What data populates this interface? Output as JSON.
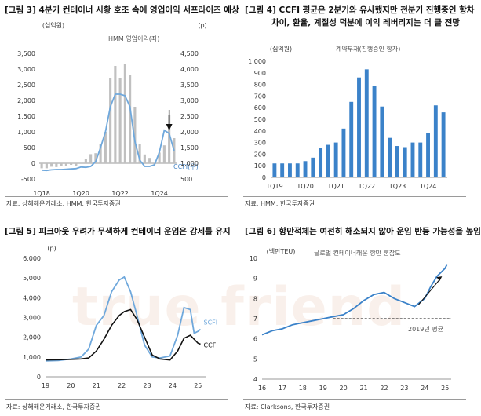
{
  "watermark": "true friend",
  "colors": {
    "grey_bar": "#c0c0c0",
    "blue_line": "#6fa8dc",
    "bar_blue": "#3b82c9",
    "black": "#111111",
    "scfi": "#6fa8dc"
  },
  "fig3": {
    "title": "[그림 3] 4분기 컨테이너 시황 호조 속에 영업이익 서프라이즈 예상",
    "source": "자료: 상해해운거래소, HMM, 한국투자증권",
    "left_unit": "(십억원)",
    "right_unit": "(p)",
    "bar_label": "HMM 영업이익(좌)",
    "line_label": "CCFI(우)",
    "chart_data": {
      "type": "bar+line",
      "categories": [
        "1Q18",
        "2Q18",
        "3Q18",
        "4Q18",
        "1Q19",
        "2Q19",
        "3Q19",
        "4Q19",
        "1Q20",
        "2Q20",
        "3Q20",
        "4Q20",
        "1Q21",
        "2Q21",
        "3Q21",
        "4Q21",
        "1Q22",
        "2Q22",
        "3Q22",
        "4Q22",
        "1Q23",
        "2Q23",
        "3Q23",
        "4Q23",
        "1Q24",
        "2Q24",
        "3Q24",
        "4Q24"
      ],
      "x_ticks": [
        "1Q18",
        "1Q20",
        "1Q22",
        "1Q24"
      ],
      "bar_series": {
        "name": "HMM 영업이익(좌)",
        "values": [
          -160,
          -160,
          -110,
          -120,
          -90,
          -90,
          -50,
          -90,
          20,
          140,
          290,
          320,
          600,
          1000,
          2700,
          3100,
          2700,
          3150,
          2800,
          1800,
          600,
          280,
          170,
          -30,
          340,
          570,
          1550,
          800
        ]
      },
      "line_series": {
        "name": "CCFI(우)",
        "values": [
          780,
          770,
          790,
          800,
          800,
          810,
          820,
          830,
          880,
          870,
          900,
          1050,
          1500,
          2000,
          2800,
          3200,
          3200,
          3150,
          2800,
          1700,
          1100,
          900,
          900,
          950,
          1350,
          2050,
          1950,
          1400
        ]
      },
      "ylim_left": [
        -500,
        3500
      ],
      "yticks_left": [
        -500,
        0,
        500,
        1000,
        1500,
        2000,
        2500,
        3000,
        3500
      ],
      "ylim_right": [
        500,
        4500
      ],
      "yticks_right": [
        500,
        1000,
        1500,
        2000,
        2500,
        3000,
        3500,
        4000,
        4500
      ],
      "arrow_at": "3Q24"
    }
  },
  "fig4": {
    "title_line1": "[그림 4] CCFI 평균은 2분기와 유사했지만 전분기 진행중인 항차",
    "title_line2": "차이, 환율, 계절성 덕분에 이익 레버리지는 더 클 전망",
    "source": "자료: HMM, 한국투자증권",
    "unit": "(십억원)",
    "series_label": "계약부채(진행중인 항차)",
    "chart_data": {
      "type": "bar",
      "categories": [
        "1Q19",
        "2Q19",
        "3Q19",
        "4Q19",
        "1Q20",
        "2Q20",
        "3Q20",
        "4Q20",
        "1Q21",
        "2Q21",
        "3Q21",
        "4Q21",
        "1Q22",
        "2Q22",
        "3Q22",
        "4Q22",
        "1Q23",
        "2Q23",
        "3Q23",
        "4Q23",
        "1Q24",
        "2Q24",
        "3Q24"
      ],
      "x_ticks": [
        "1Q19",
        "1Q20",
        "1Q21",
        "1Q22",
        "1Q23",
        "1Q24"
      ],
      "values": [
        120,
        120,
        120,
        120,
        140,
        170,
        250,
        280,
        300,
        420,
        650,
        860,
        930,
        790,
        610,
        340,
        270,
        260,
        300,
        300,
        380,
        620,
        560
      ],
      "ylim": [
        0,
        1000
      ],
      "yticks": [
        0,
        100,
        200,
        300,
        400,
        500,
        600,
        700,
        800,
        900,
        1000
      ]
    }
  },
  "fig5": {
    "title": "[그림 5] 피크아웃 우려가 무색하게 컨테이너 운임은 강세를 유지",
    "source": "자료: 상해해운거래소, 한국투자증권",
    "unit": "(p)",
    "chart_data": {
      "type": "line",
      "x_ticks": [
        "19",
        "20",
        "21",
        "22",
        "23",
        "24",
        "25"
      ],
      "xlim": [
        19,
        25.3
      ],
      "ylim": [
        0,
        6000
      ],
      "yticks": [
        0,
        1000,
        2000,
        3000,
        4000,
        5000,
        6000
      ],
      "series": [
        {
          "name": "SCFI",
          "x": [
            19,
            19.5,
            20,
            20.4,
            20.7,
            21,
            21.3,
            21.6,
            21.9,
            22.1,
            22.35,
            22.6,
            22.9,
            23.2,
            23.5,
            23.9,
            24.2,
            24.45,
            24.7,
            24.85,
            25.0,
            25.1
          ],
          "y": [
            800,
            820,
            900,
            1000,
            1400,
            2600,
            3100,
            4300,
            4900,
            5050,
            4300,
            3100,
            1600,
            1000,
            950,
            1050,
            2100,
            3500,
            3400,
            2200,
            2300,
            2400
          ]
        },
        {
          "name": "CCFI",
          "x": [
            19,
            19.5,
            20,
            20.4,
            20.7,
            21,
            21.3,
            21.6,
            21.9,
            22.1,
            22.35,
            22.6,
            22.9,
            23.2,
            23.5,
            23.9,
            24.2,
            24.45,
            24.7,
            24.85,
            25.0,
            25.1
          ],
          "y": [
            850,
            860,
            880,
            900,
            950,
            1300,
            1900,
            2600,
            3100,
            3300,
            3400,
            2900,
            2000,
            1100,
            900,
            850,
            1300,
            1950,
            2100,
            1900,
            1700,
            1650
          ]
        }
      ]
    }
  },
  "fig6": {
    "title": "[그림 6] 항만적체는 여전히 해소되지 않아 운임 반등 가능성을 높임",
    "source": "자료: Clarksons, 한국투자증권",
    "unit": "(백만TEU)",
    "series_label": "글로벌 컨테이너해운 항만 혼잡도",
    "avg_label": "2019년 평균",
    "chart_data": {
      "type": "line",
      "x_ticks": [
        "16",
        "17",
        "18",
        "19",
        "20",
        "21",
        "22",
        "23",
        "24",
        "25"
      ],
      "xlim": [
        16,
        25.3
      ],
      "ylim": [
        4,
        10
      ],
      "yticks": [
        4,
        5,
        6,
        7,
        8,
        9,
        10
      ],
      "average_2019": 7.0,
      "series": [
        {
          "name": "글로벌 컨테이너해운 항만 혼잡도",
          "x": [
            16,
            16.5,
            17,
            17.5,
            18,
            18.5,
            19,
            19.5,
            20,
            20.5,
            21,
            21.5,
            22,
            22.5,
            23,
            23.5,
            24,
            24.3,
            24.6,
            25,
            25.1
          ],
          "y": [
            6.2,
            6.4,
            6.5,
            6.7,
            6.8,
            6.9,
            7.0,
            7.1,
            7.2,
            7.5,
            7.9,
            8.2,
            8.3,
            8.0,
            7.8,
            7.6,
            8.0,
            8.6,
            9.1,
            9.5,
            9.7
          ]
        }
      ]
    }
  }
}
